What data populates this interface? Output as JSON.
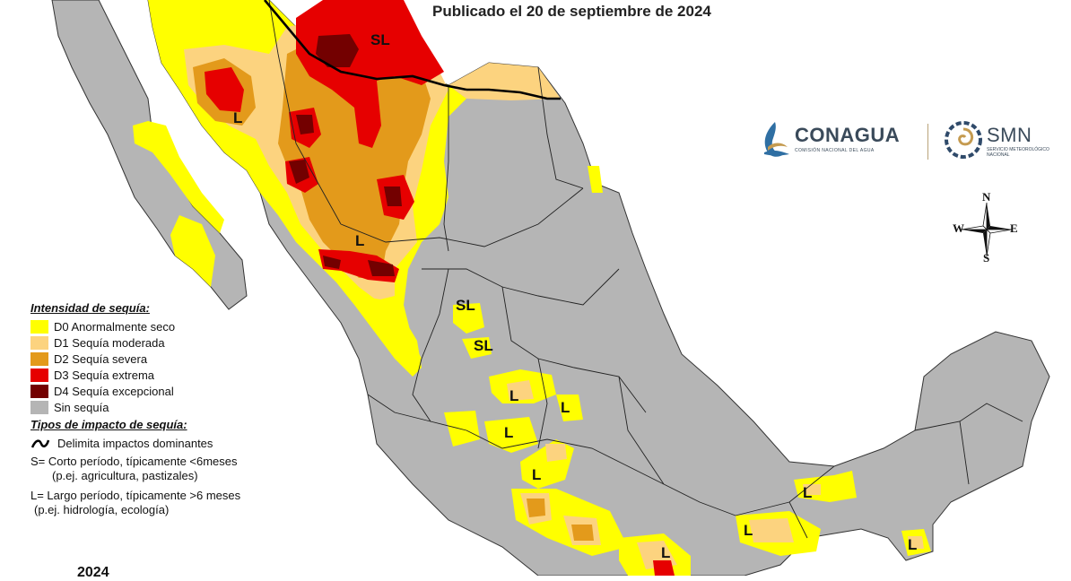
{
  "title": "Publicado el 20 de septiembre de 2024",
  "year_label": "2024",
  "legend": {
    "intensity_heading": "Intensidad de sequía:",
    "categories": [
      {
        "code": "D0",
        "label": "D0 Anormalmente seco",
        "color": "#ffff00"
      },
      {
        "code": "D1",
        "label": "D1 Sequía moderada",
        "color": "#fcd37f"
      },
      {
        "code": "D2",
        "label": "D2 Sequía severa",
        "color": "#e39a1b"
      },
      {
        "code": "D3",
        "label": "D3 Sequía extrema",
        "color": "#e60000"
      },
      {
        "code": "D4",
        "label": "D4 Sequía excepcional",
        "color": "#730000"
      },
      {
        "code": "none",
        "label": "Sin sequía",
        "color": "#b5b5b5"
      }
    ],
    "impact_heading": "Tipos de impacto de sequía:",
    "boundary_label": "Delimita impactos dominantes",
    "short_term_line1": "S= Corto período, típicamente <6meses",
    "short_term_line2": "(p.ej. agricultura, pastizales)",
    "long_term_line1": "L= Largo período, típicamente >6 meses",
    "long_term_line2": "(p.ej. hidrología, ecología)"
  },
  "logos": {
    "conagua_name": "CONAGUA",
    "conagua_subtitle": "COMISIÓN NACIONAL DEL AGUA",
    "smn_name": "SMN",
    "smn_subtitle": "SERVICIO METEOROLÓGICO NACIONAL"
  },
  "compass": {
    "north": "N",
    "south": "S",
    "east": "E",
    "west": "W",
    "icon": "compass-rose-icon"
  },
  "map_labels": [
    {
      "id": "sl-northeast",
      "text": "SL"
    },
    {
      "id": "l-sonora",
      "text": "L"
    },
    {
      "id": "l-durango",
      "text": "L"
    },
    {
      "id": "sl-zacatecas",
      "text": "SL"
    },
    {
      "id": "sl-aguascalientes",
      "text": "SL"
    },
    {
      "id": "l-guanajuato",
      "text": "L"
    },
    {
      "id": "l-hidalgo",
      "text": "L"
    },
    {
      "id": "l-michoacan",
      "text": "L"
    },
    {
      "id": "l-morelos",
      "text": "L"
    },
    {
      "id": "l-oaxaca",
      "text": "L"
    },
    {
      "id": "l-veracruz-south",
      "text": "L"
    },
    {
      "id": "l-tabasco",
      "text": "L"
    },
    {
      "id": "l-chiapas",
      "text": "L"
    }
  ]
}
